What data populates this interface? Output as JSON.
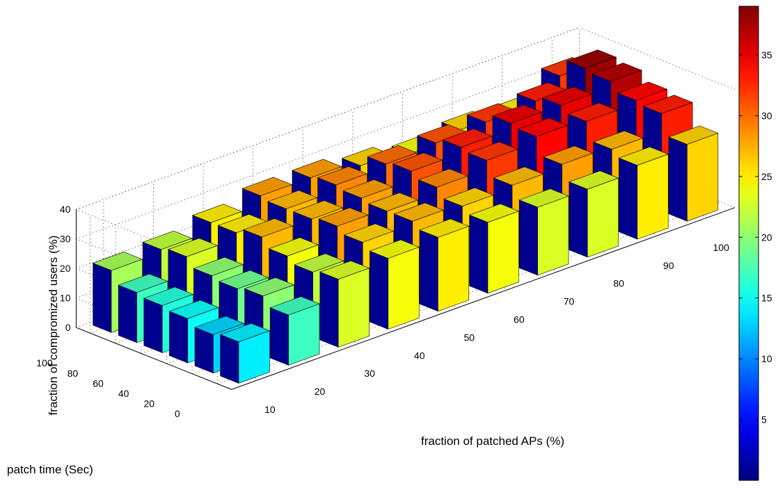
{
  "chart_data": {
    "type": "bar3",
    "xlabel": "fraction of patched APs (%)",
    "ylabel": "patch time (Sec)",
    "zlabel": "fraction of compromized users (%)",
    "x": [
      10,
      20,
      30,
      40,
      50,
      60,
      70,
      80,
      90,
      100
    ],
    "x_tick_labels": [
      "10",
      "20",
      "30",
      "40",
      "50",
      "60",
      "70",
      "80",
      "90",
      "100"
    ],
    "y": [
      0,
      20,
      40,
      60,
      80,
      100
    ],
    "y_tick_labels": [
      "0",
      "20",
      "40",
      "60",
      "80",
      "100"
    ],
    "z_ticks": [
      0,
      10,
      20,
      30,
      40
    ],
    "z_tick_labels": [
      "0",
      "10",
      "20",
      "30",
      "40"
    ],
    "zlim": [
      0,
      40
    ],
    "grid": true,
    "colormap": "jet",
    "colorbar": {
      "ticks": [
        5,
        10,
        15,
        20,
        25,
        30,
        35
      ],
      "tick_labels": [
        "5",
        "10",
        "15",
        "20",
        "25",
        "30",
        "35"
      ],
      "range": [
        0,
        39
      ],
      "low_color": "#00008f",
      "high_color": "#800000"
    },
    "side_face_color": "#00008f",
    "values": [
      [
        14,
        17,
        23,
        24,
        25,
        24,
        23,
        23,
        25,
        26
      ],
      [
        13,
        20,
        22,
        26,
        27,
        26,
        27,
        28,
        27,
        33
      ],
      [
        15,
        19,
        24,
        28,
        27,
        29,
        32,
        34,
        33,
        34
      ],
      [
        16,
        20,
        27,
        27,
        28,
        31,
        33,
        35,
        35,
        37
      ],
      [
        17,
        23,
        25,
        27,
        29,
        30,
        31,
        32,
        33,
        38
      ],
      [
        21,
        22,
        25,
        28,
        28,
        26,
        24,
        26,
        25,
        32
      ]
    ]
  }
}
